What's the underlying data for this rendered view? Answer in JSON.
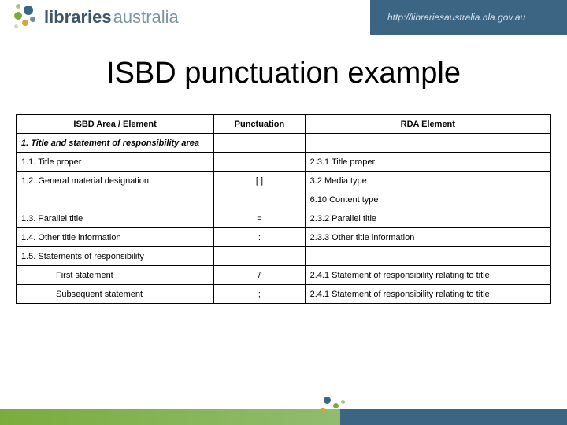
{
  "header": {
    "logo_bold": "libraries",
    "logo_light": "australia",
    "url": "http://librariesaustralia.nla.gov.au",
    "bubble_colors": [
      "#3b6583",
      "#7aac3d",
      "#a8c97d",
      "#d4a53d",
      "#6b8da5",
      "#cde0b9"
    ]
  },
  "title": "ISBD punctuation example",
  "table": {
    "headers": [
      "ISBD Area / Element",
      "Punctuation",
      "RDA Element"
    ],
    "rows": [
      {
        "type": "section",
        "area": "1. Title and statement of responsibility area",
        "punc": "",
        "rda": ""
      },
      {
        "type": "normal",
        "area": "1.1. Title proper",
        "punc": "",
        "rda": "2.3.1 Title proper"
      },
      {
        "type": "normal",
        "area": "1.2. General material designation",
        "punc": "[ ]",
        "rda": "3.2 Media type"
      },
      {
        "type": "normal",
        "area": "",
        "punc": "",
        "rda": "6.10 Content type"
      },
      {
        "type": "normal",
        "area": "1.3. Parallel title",
        "punc": "=",
        "rda": "2.3.2 Parallel title"
      },
      {
        "type": "normal",
        "area": "1.4. Other title information",
        "punc": ":",
        "rda": "2.3.3 Other title information"
      },
      {
        "type": "normal",
        "area": "1.5. Statements of responsibility",
        "punc": "",
        "rda": ""
      },
      {
        "type": "indent",
        "area": "First statement",
        "punc": "/",
        "rda": "2.4.1 Statement of responsibility relating to title"
      },
      {
        "type": "indent",
        "area": "Subsequent statement",
        "punc": ";",
        "rda": "2.4.1 Statement of responsibility relating to title"
      }
    ]
  }
}
